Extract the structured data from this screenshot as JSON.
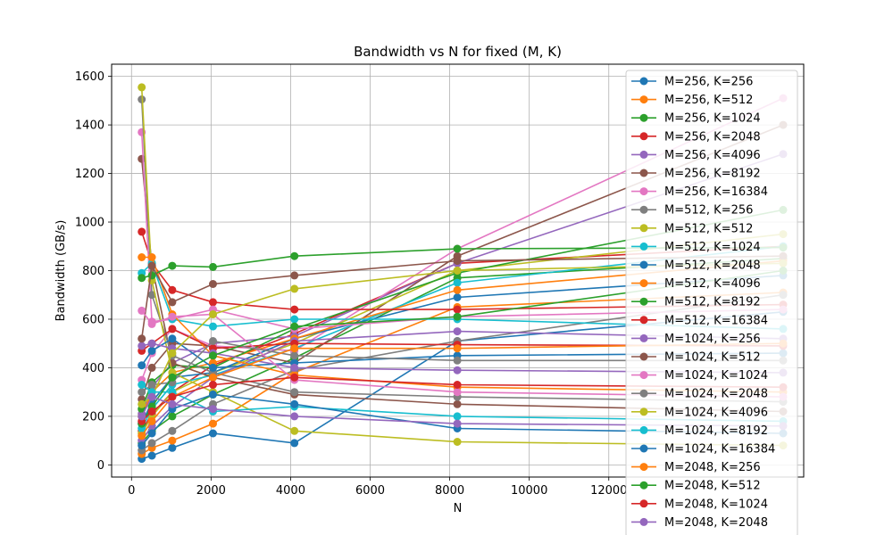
{
  "chart_data": {
    "type": "line",
    "title": "Bandwidth vs N for fixed (M, K)",
    "xlabel": "N",
    "ylabel": "Bandwidth (GB/s)",
    "xlim": [
      -500,
      16900
    ],
    "ylim": [
      -50,
      1650
    ],
    "xticks": [
      0,
      2000,
      4000,
      6000,
      8000,
      10000,
      12000
    ],
    "xtick_labels": [
      "0",
      "2000",
      "4000",
      "6000",
      "8000",
      "10000",
      "12000"
    ],
    "yticks": [
      0,
      200,
      400,
      600,
      800,
      1000,
      1200,
      1400,
      1600
    ],
    "ytick_labels": [
      "0",
      "200",
      "400",
      "600",
      "800",
      "1000",
      "1200",
      "1400",
      "1600"
    ],
    "grid": true,
    "legend_position": "upper-right",
    "x": [
      256,
      512,
      1024,
      2048,
      4096,
      8192,
      16384
    ],
    "series": [
      {
        "name": "M=256, K=256",
        "color": "#1f77b4",
        "values": [
          25,
          38,
          70,
          130,
          90,
          510,
          630
        ]
      },
      {
        "name": "M=256, K=512",
        "color": "#ff7f0e",
        "values": [
          45,
          70,
          100,
          170,
          380,
          650,
          710
        ]
      },
      {
        "name": "M=256, K=1024",
        "color": "#2ca02c",
        "values": [
          90,
          140,
          200,
          290,
          440,
          770,
          850
        ]
      },
      {
        "name": "M=256, K=2048",
        "color": "#d62728",
        "values": [
          140,
          210,
          300,
          410,
          540,
          830,
          900
        ]
      },
      {
        "name": "M=256, K=4096",
        "color": "#9467bd",
        "values": [
          210,
          320,
          420,
          500,
          530,
          830,
          1280
        ]
      },
      {
        "name": "M=256, K=8192",
        "color": "#8c564b",
        "values": [
          270,
          400,
          500,
          490,
          420,
          860,
          1400
        ]
      },
      {
        "name": "M=256, K=16384",
        "color": "#e377c2",
        "values": [
          350,
          460,
          560,
          490,
          470,
          890,
          1510
        ]
      },
      {
        "name": "M=512, K=256",
        "color": "#7f7f7f",
        "values": [
          60,
          90,
          140,
          250,
          390,
          510,
          700
        ]
      },
      {
        "name": "M=512, K=512",
        "color": "#bcbd22",
        "values": [
          130,
          200,
          300,
          380,
          500,
          800,
          950
        ]
      },
      {
        "name": "M=512, K=1024",
        "color": "#17becf",
        "values": [
          150,
          230,
          330,
          370,
          480,
          750,
          900
        ]
      },
      {
        "name": "M=512, K=2048",
        "color": "#1f77b4",
        "values": [
          170,
          260,
          360,
          380,
          520,
          690,
          780
        ]
      },
      {
        "name": "M=512, K=4096",
        "color": "#ff7f0e",
        "values": [
          200,
          300,
          380,
          420,
          520,
          720,
          840
        ]
      },
      {
        "name": "M=512, K=8192",
        "color": "#2ca02c",
        "values": [
          230,
          340,
          410,
          400,
          560,
          790,
          1050
        ]
      },
      {
        "name": "M=512, K=16384",
        "color": "#d62728",
        "values": [
          960,
          830,
          720,
          670,
          640,
          640,
          660
        ]
      },
      {
        "name": "M=1024, K=256",
        "color": "#9467bd",
        "values": [
          100,
          160,
          240,
          360,
          510,
          550,
          520
        ]
      },
      {
        "name": "M=1024, K=512",
        "color": "#8c564b",
        "values": [
          1260,
          820,
          420,
          360,
          290,
          250,
          220
        ]
      },
      {
        "name": "M=1024, K=1024",
        "color": "#e377c2",
        "values": [
          1370,
          590,
          600,
          640,
          560,
          610,
          640
        ]
      },
      {
        "name": "M=1024, K=2048",
        "color": "#7f7f7f",
        "values": [
          1505,
          700,
          450,
          380,
          300,
          280,
          260
        ]
      },
      {
        "name": "M=1024, K=4096",
        "color": "#bcbd22",
        "values": [
          1555,
          760,
          380,
          300,
          140,
          95,
          80
        ]
      },
      {
        "name": "M=1024, K=8192",
        "color": "#17becf",
        "values": [
          790,
          830,
          600,
          570,
          600,
          600,
          560
        ]
      },
      {
        "name": "M=1024, K=16384",
        "color": "#1f77b4",
        "values": [
          410,
          470,
          520,
          400,
          420,
          450,
          460
        ]
      },
      {
        "name": "M=2048, K=256",
        "color": "#ff7f0e",
        "values": [
          855,
          855,
          620,
          450,
          370,
          320,
          300
        ]
      },
      {
        "name": "M=2048, K=512",
        "color": "#2ca02c",
        "values": [
          770,
          780,
          820,
          815,
          860,
          890,
          895
        ]
      },
      {
        "name": "M=2048, K=1024",
        "color": "#d62728",
        "values": [
          470,
          500,
          560,
          480,
          500,
          495,
          490
        ]
      },
      {
        "name": "M=2048, K=2048",
        "color": "#9467bd",
        "values": [
          490,
          500,
          480,
          460,
          400,
          390,
          380
        ]
      },
      {
        "name": "",
        "color": "#8c564b",
        "values": [
          520,
          820,
          670,
          745,
          780,
          840,
          860
        ]
      },
      {
        "name": "",
        "color": "#e377c2",
        "values": [
          635,
          580,
          610,
          620,
          350,
          300,
          280
        ]
      },
      {
        "name": "",
        "color": "#7f7f7f",
        "values": [
          300,
          330,
          340,
          510,
          450,
          430,
          430
        ]
      },
      {
        "name": "",
        "color": "#bcbd22",
        "values": [
          250,
          280,
          460,
          620,
          725,
          800,
          830
        ]
      },
      {
        "name": "",
        "color": "#17becf",
        "values": [
          330,
          300,
          300,
          220,
          240,
          200,
          180
        ]
      },
      {
        "name": "",
        "color": "#1f77b4",
        "values": [
          80,
          130,
          230,
          290,
          250,
          150,
          130
        ]
      },
      {
        "name": "",
        "color": "#ff7f0e",
        "values": [
          120,
          180,
          280,
          360,
          480,
          480,
          500
        ]
      },
      {
        "name": "",
        "color": "#2ca02c",
        "values": [
          170,
          240,
          360,
          450,
          570,
          610,
          800
        ]
      },
      {
        "name": "",
        "color": "#d62728",
        "values": [
          180,
          220,
          280,
          330,
          360,
          330,
          320
        ]
      },
      {
        "name": "",
        "color": "#9467bd",
        "values": [
          200,
          280,
          250,
          230,
          200,
          170,
          160
        ]
      }
    ]
  }
}
